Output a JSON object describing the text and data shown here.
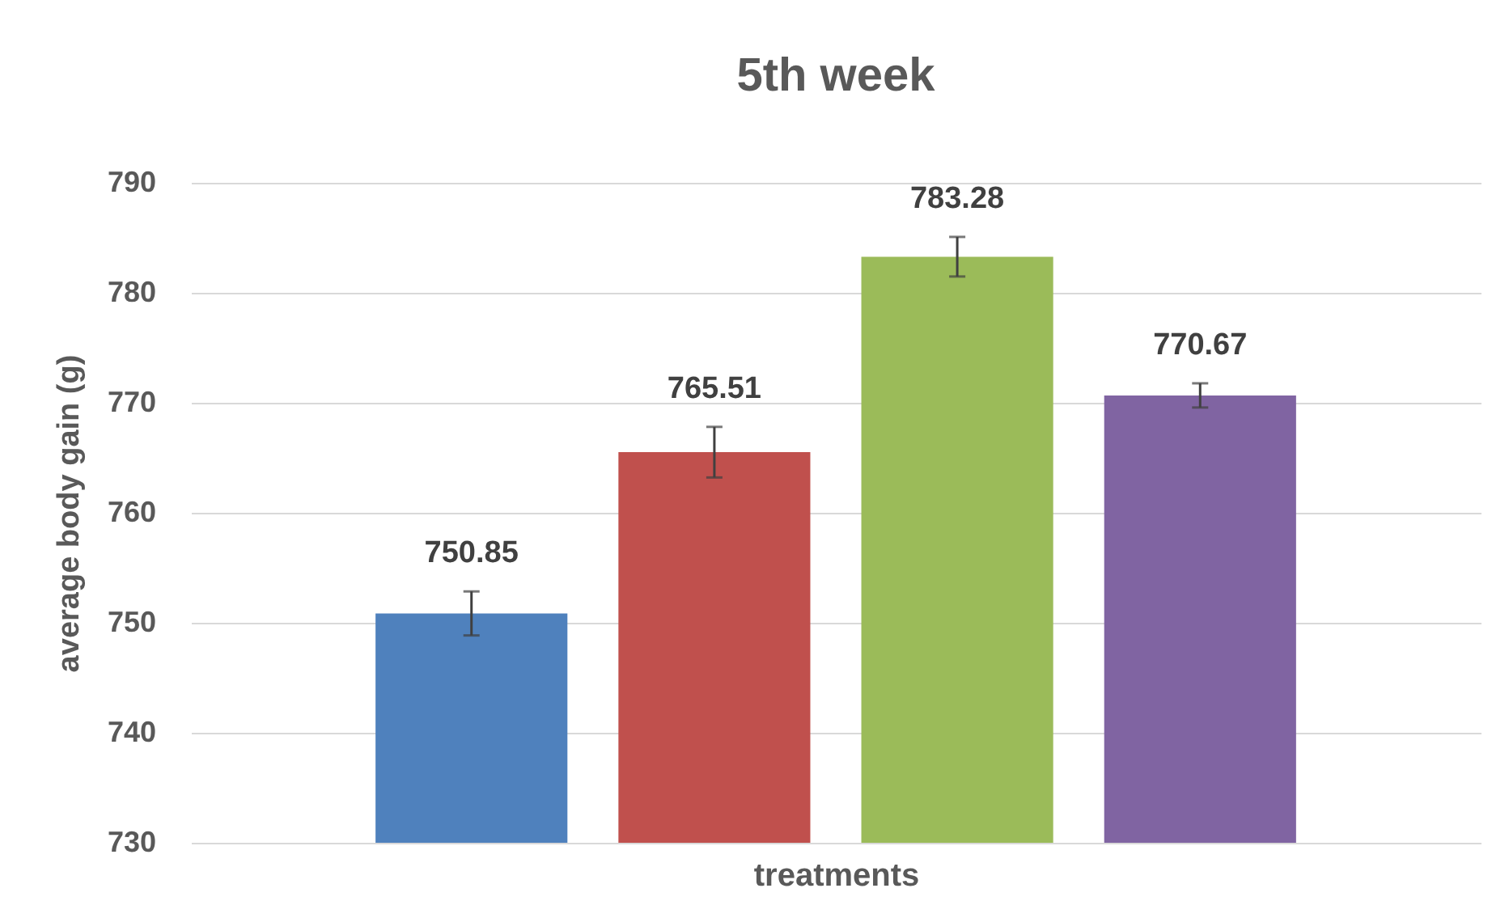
{
  "chart_data": {
    "type": "bar",
    "title": "5th week",
    "xlabel": "treatments",
    "ylabel": "average body gain (g)",
    "categories": [
      null,
      null,
      null,
      null
    ],
    "values": [
      750.85,
      765.51,
      783.28,
      770.67
    ],
    "colors": [
      "#4f81bd",
      "#c0504d",
      "#9bbb59",
      "#8064a2"
    ],
    "errors": [
      2,
      2.3,
      1.8,
      1.1
    ],
    "ylim": [
      730,
      790
    ],
    "yticks": [
      730,
      740,
      750,
      760,
      770,
      780,
      790
    ],
    "grid": "y",
    "data_labels": true
  }
}
